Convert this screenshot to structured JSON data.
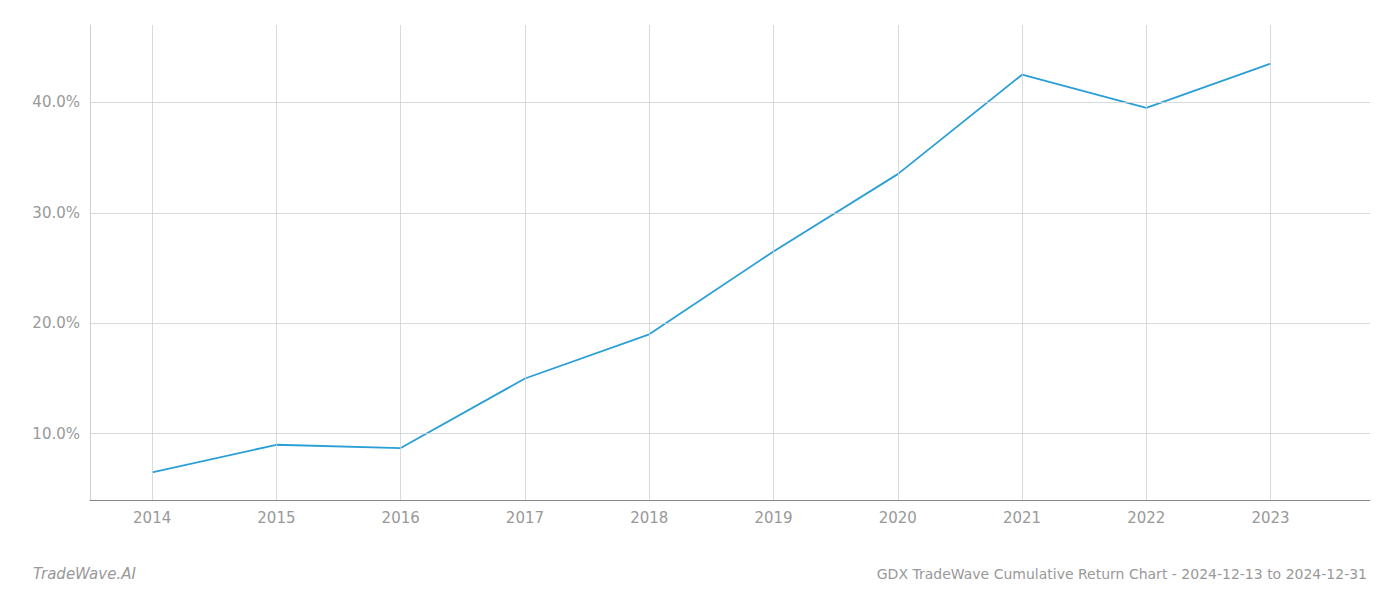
{
  "chart_data": {
    "type": "line",
    "title": "GDX TradeWave Cumulative Return Chart - 2024-12-13 to 2024-12-31",
    "annotations": [
      {
        "text": "TradeWave.AI"
      }
    ],
    "x": [
      2014,
      2015,
      2016,
      2017,
      2018,
      2019,
      2020,
      2021,
      2022,
      2023
    ],
    "values": [
      6.5,
      9.0,
      8.7,
      15.0,
      19.0,
      26.5,
      33.5,
      42.5,
      39.5,
      43.5
    ],
    "color": "#2a9fd6",
    "xlim": [
      2013.5,
      2023.8
    ],
    "xticks": [
      2014,
      2015,
      2016,
      2017,
      2018,
      2019,
      2020,
      2021,
      2022,
      2023
    ],
    "ylim": [
      4.0,
      47.0
    ],
    "yticks": [
      {
        "value": 10.0,
        "label": "10.0%"
      },
      {
        "value": 20.0,
        "label": "20.0%"
      },
      {
        "value": 30.0,
        "label": "30.0%"
      },
      {
        "value": 40.0,
        "label": "40.0%"
      }
    ],
    "grid": true
  }
}
